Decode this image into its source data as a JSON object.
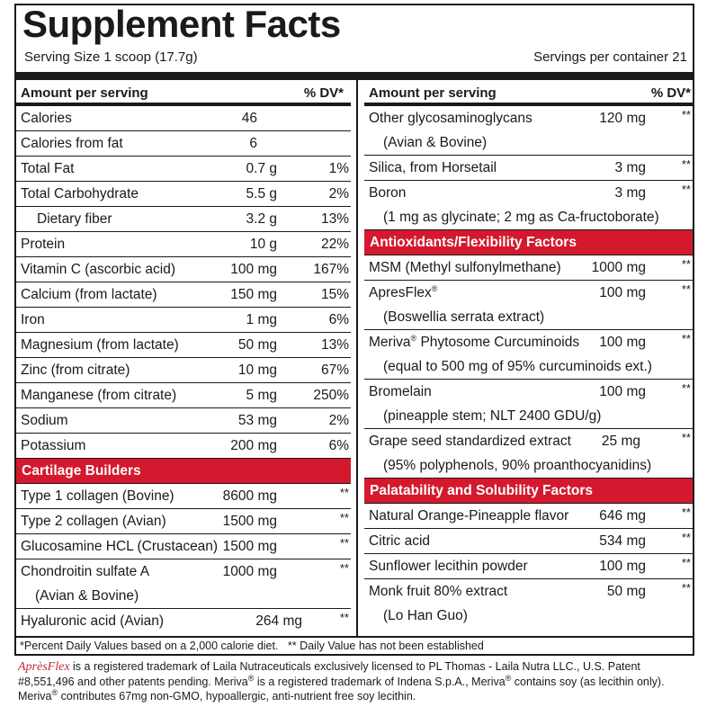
{
  "header": {
    "title": "Supplement Facts",
    "serving_size": "Serving Size 1 scoop (17.7g)",
    "servings_per_container": "Servings per container 21"
  },
  "table_header": {
    "amount": "Amount per serving",
    "dv": "% DV*"
  },
  "left_rows": [
    {
      "name": "Calories",
      "amount": "46",
      "dv": ""
    },
    {
      "name": "Calories from fat",
      "amount": "6",
      "dv": ""
    },
    {
      "name": "Total Fat",
      "amount": "0.7 g",
      "dv": "1%"
    },
    {
      "name": "Total Carbohydrate",
      "amount": "5.5 g",
      "dv": "2%"
    },
    {
      "name": "Dietary fiber",
      "amount": "3.2 g",
      "dv": "13%"
    },
    {
      "name": "Protein",
      "amount": "10 g",
      "dv": "22%"
    },
    {
      "name": "Vitamin C (ascorbic acid)",
      "amount": "100 mg",
      "dv": "167%"
    },
    {
      "name": "Calcium (from lactate)",
      "amount": "150 mg",
      "dv": "15%"
    },
    {
      "name": "Iron",
      "amount": "1 mg",
      "dv": "6%"
    },
    {
      "name": "Magnesium (from lactate)",
      "amount": "50 mg",
      "dv": "13%"
    },
    {
      "name": "Zinc (from citrate)",
      "amount": "10 mg",
      "dv": "67%"
    },
    {
      "name": "Manganese (from citrate)",
      "amount": "5 mg",
      "dv": "250%"
    },
    {
      "name": "Sodium",
      "amount": "53 mg",
      "dv": "2%"
    },
    {
      "name": "Potassium",
      "amount": "200 mg",
      "dv": "6%"
    }
  ],
  "cartilage": {
    "heading": "Cartilage Builders",
    "rows": [
      {
        "name": "Type 1 collagen (Bovine)",
        "amount": "8600 mg",
        "dv": "**"
      },
      {
        "name": "Type 2 collagen (Avian)",
        "amount": "1500 mg",
        "dv": "**"
      },
      {
        "name": "Glucosamine HCL (Crustacean)",
        "amount": "1500 mg",
        "dv": "**"
      },
      {
        "name": "Chondroitin sulfate A",
        "name2": "(Avian & Bovine)",
        "amount": "1000 mg",
        "dv": "**"
      },
      {
        "name": "Hyaluronic acid (Avian)",
        "amount": "264 mg",
        "dv": "**"
      }
    ]
  },
  "right_rows": [
    {
      "name": "Other glycosaminoglycans",
      "name2": "(Avian & Bovine)",
      "amount": "120 mg",
      "dv": "**"
    },
    {
      "name": "Silica, from Horsetail",
      "amount": "3 mg",
      "dv": "**"
    },
    {
      "name": "Boron",
      "name2": "(1 mg as glycinate; 2 mg as Ca-fructoborate)",
      "amount": "3 mg",
      "dv": "**"
    }
  ],
  "antioxidants": {
    "heading": "Antioxidants/Flexibility Factors",
    "rows": [
      {
        "name": "MSM (Methyl sulfonylmethane)",
        "amount": "1000 mg",
        "dv": "**"
      },
      {
        "name": "ApresFlex",
        "sup": "®",
        "name2": "(Boswellia serrata extract)",
        "amount": "100 mg",
        "dv": "**"
      },
      {
        "name": "Meriva",
        "sup": "®",
        "name_tail": " Phytosome Curcuminoids",
        "name2": "(equal to 500 mg of 95% curcuminoids ext.)",
        "amount": "100 mg",
        "dv": "**"
      },
      {
        "name": "Bromelain",
        "name2": "(pineapple stem; NLT 2400 GDU/g)",
        "amount": "100 mg",
        "dv": "**"
      },
      {
        "name": "Grape seed standardized extract",
        "name2": "(95% polyphenols, 90% proanthocyanidins)",
        "amount": "25 mg",
        "dv": "**"
      }
    ]
  },
  "palatability": {
    "heading": "Palatability and Solubility Factors",
    "rows": [
      {
        "name": "Natural Orange-Pineapple flavor",
        "amount": "646 mg",
        "dv": "**"
      },
      {
        "name": "Citric acid",
        "amount": "534 mg",
        "dv": "**"
      },
      {
        "name": "Sunflower lecithin powder",
        "amount": "100 mg",
        "dv": "**"
      },
      {
        "name": "Monk fruit 80% extract",
        "name2": "(Lo Han Guo)",
        "amount": "50 mg",
        "dv": "**"
      }
    ]
  },
  "footnote": "*Percent Daily Values based on a 2,000 calorie diet.   ** Daily Value has not been established",
  "disclaimer": {
    "brand_a": "Après",
    "brand_b": "Flex",
    "text1": " is a registered trademark of Laila Nutraceuticals exclusively licensed to PL Thomas - Laila Nutra LLC.,  U.S. Patent #8,551,496 and other patents pending. Meriva",
    "reg": "®",
    "text2": " is a registered trademark of Indena S.p.A., Meriva",
    "text3": " contains soy (as lecithin only). Meriva",
    "text4": " contributes 67mg non-GMO, hypoallergic, anti-nutrient free soy lecithin."
  },
  "colors": {
    "section_red": "#d4192e",
    "brand_red": "#c22a36",
    "ink": "#1a1a1a"
  }
}
